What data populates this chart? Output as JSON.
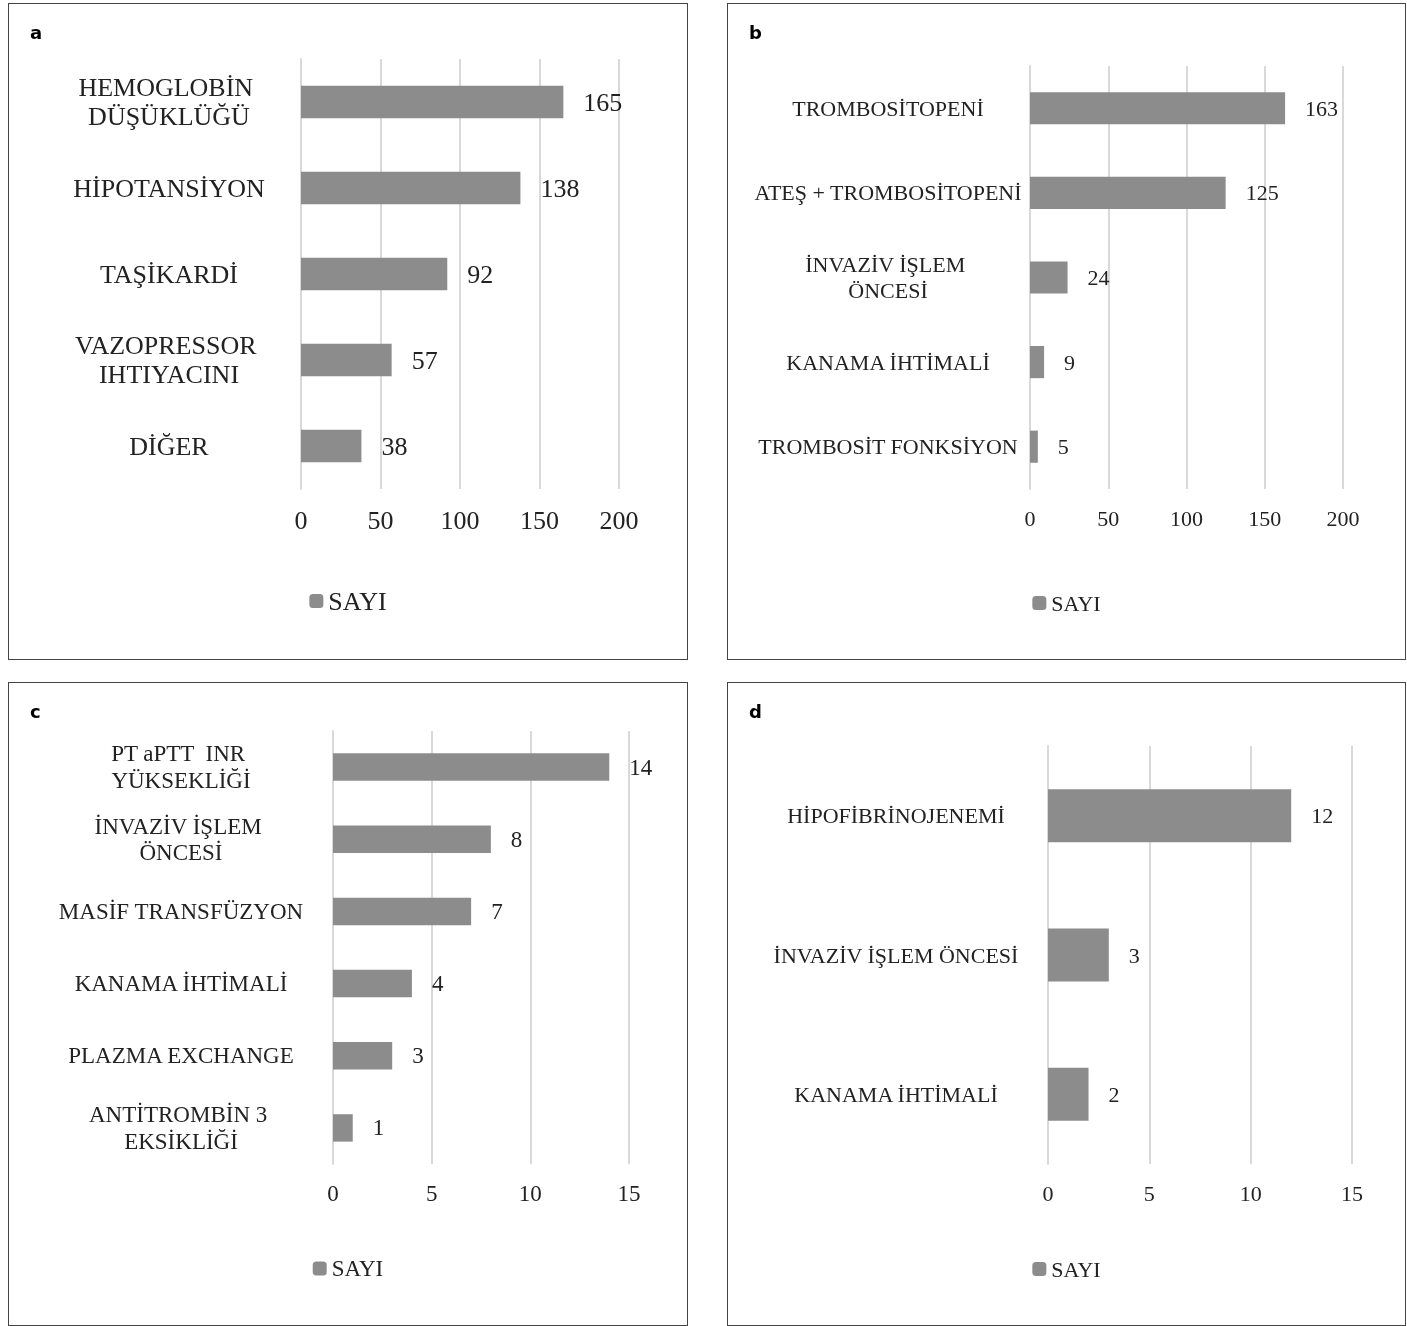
{
  "chart_data": [
    {
      "type": "bar",
      "title": "a",
      "orientation": "horizontal",
      "categories": [
        "HEMOGLOBİN DÜŞÜKLÜĞÜ",
        "HİPOTANSİYON",
        "TAŞİKARDİ",
        "VAZOPRESSOR IHTIYACINI",
        "DİĞER"
      ],
      "series": [
        {
          "name": "SAYI",
          "color": "#8c8c8c",
          "values": [
            165,
            138,
            92,
            57,
            38
          ]
        }
      ],
      "xlim": [
        0,
        200
      ],
      "xticks": [
        0,
        50,
        100,
        150,
        200
      ],
      "grid": "x",
      "legend": "bottom",
      "data_labels": true
    },
    {
      "type": "bar",
      "title": "b",
      "orientation": "horizontal",
      "categories": [
        "TROMBOSİTOPENİ",
        "ATEŞ + TROMBOSİTOPENİ",
        "İNVAZİV İŞLEM ÖNCESİ",
        "KANAMA İHTİMALİ",
        "TROMBOSİT FONKSİYON"
      ],
      "series": [
        {
          "name": "SAYI",
          "color": "#8c8c8c",
          "values": [
            163,
            125,
            24,
            9,
            5
          ]
        }
      ],
      "xlim": [
        0,
        200
      ],
      "xticks": [
        0,
        50,
        100,
        150,
        200
      ],
      "grid": "x",
      "legend": "bottom",
      "data_labels": true
    },
    {
      "type": "bar",
      "title": "c",
      "orientation": "horizontal",
      "categories": [
        "PT aPTT  INR YÜKSEKLİĞİ",
        "İNVAZİV İŞLEM ÖNCESİ",
        "MASİF TRANSFÜZYON",
        "KANAMA İHTİMALİ",
        "PLAZMA EXCHANGE",
        "ANTİTROMBİN 3 EKSİKLİĞİ"
      ],
      "series": [
        {
          "name": "SAYI",
          "color": "#8c8c8c",
          "values": [
            14,
            8,
            7,
            4,
            3,
            1
          ]
        }
      ],
      "xlim": [
        0,
        15
      ],
      "xticks": [
        0,
        5,
        10,
        15
      ],
      "grid": "x",
      "legend": "bottom",
      "data_labels": true
    },
    {
      "type": "bar",
      "title": "d",
      "orientation": "horizontal",
      "categories": [
        "HİPOFİBRİNOJENEMİ",
        "İNVAZİV İŞLEM ÖNCESİ",
        "KANAMA İHTİMALİ"
      ],
      "series": [
        {
          "name": "SAYI",
          "color": "#8c8c8c",
          "values": [
            12,
            3,
            2
          ]
        }
      ],
      "xlim": [
        0,
        15
      ],
      "xticks": [
        0,
        5,
        10,
        15
      ],
      "grid": "x",
      "legend": "bottom",
      "data_labels": true
    }
  ]
}
